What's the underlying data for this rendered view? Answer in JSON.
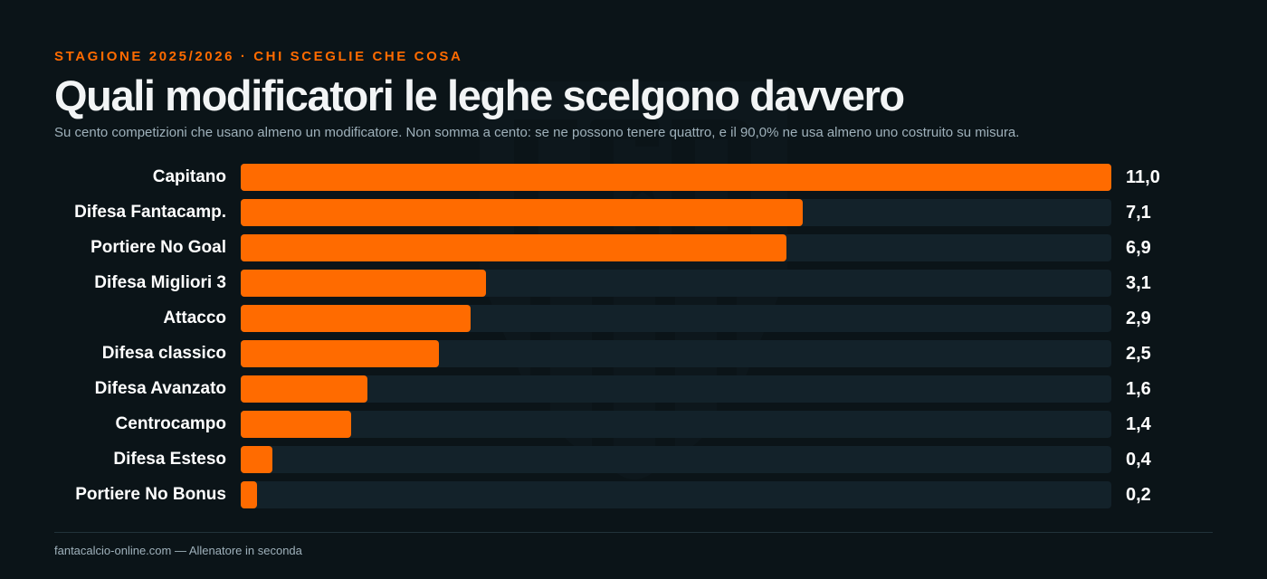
{
  "header": {
    "kicker": "STAGIONE 2025/2026 · CHI SCEGLIE CHE COSA",
    "title": "Quali modificatori le leghe scelgono davvero",
    "subtitle": "Su cento competizioni che usano almeno un modificatore. Non somma a cento: se ne possono tenere quattro, e il 90,0% ne usa almeno uno costruito su misura."
  },
  "footer": {
    "credit": "fantacalcio-online.com — Allenatore in seconda"
  },
  "watermark": {
    "icon": "fcd-logo-shield-icon"
  },
  "colors": {
    "accent": "#ff6b00",
    "background": "#0b1418",
    "track": "#13222a"
  },
  "chart_data": {
    "type": "bar",
    "orientation": "horizontal",
    "title": "Quali modificatori le leghe scelgono davvero",
    "xlabel": "",
    "ylabel": "",
    "xlim": [
      0,
      11.0
    ],
    "grid": false,
    "categories": [
      "Capitano",
      "Difesa Fantacamp.",
      "Portiere No Goal",
      "Difesa Migliori 3",
      "Attacco",
      "Difesa classico",
      "Difesa Avanzato",
      "Centrocampo",
      "Difesa Esteso",
      "Portiere No Bonus"
    ],
    "values": [
      11.0,
      7.1,
      6.9,
      3.1,
      2.9,
      2.5,
      1.6,
      1.4,
      0.4,
      0.2
    ],
    "value_labels": [
      "11,0",
      "7,1",
      "6,9",
      "3,1",
      "2,9",
      "2,5",
      "1,6",
      "1,4",
      "0,4",
      "0,2"
    ]
  }
}
